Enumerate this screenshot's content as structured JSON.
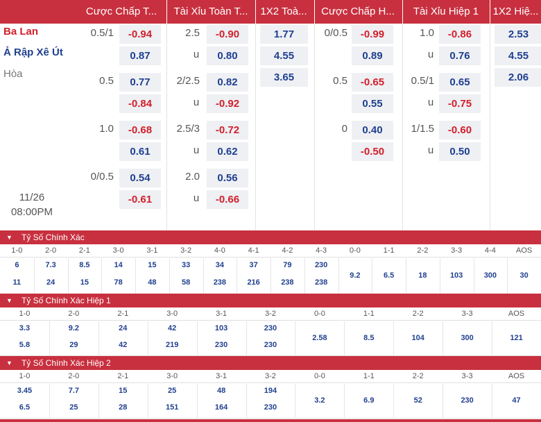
{
  "header": {
    "cols": [
      "Cược Chấp T...",
      "Tài Xỉu Toàn T...",
      "1X2 Toà...",
      "Cược Chấp H...",
      "Tài Xỉu Hiệp 1",
      "1X2 Hiệ..."
    ]
  },
  "teams": {
    "home": "Ba Lan",
    "away": "Ả Rập Xê Út",
    "draw": "Hòa"
  },
  "match_time": {
    "date": "11/26",
    "time": "08:00PM"
  },
  "full_rows": [
    {
      "hcap": "0.5/1",
      "h1": "-0.94",
      "h2": "0.87",
      "ou": "2.5",
      "u": "u",
      "o1": "-0.90",
      "o2": "0.80"
    },
    {
      "hcap": "0.5",
      "h1": "0.77",
      "h2": "-0.84",
      "ou": "2/2.5",
      "u": "u",
      "o1": "0.82",
      "o2": "-0.92"
    },
    {
      "hcap": "1.0",
      "h1": "-0.68",
      "h2": "0.61",
      "ou": "2.5/3",
      "u": "u",
      "o1": "-0.72",
      "o2": "0.62"
    },
    {
      "hcap": "0/0.5",
      "h1": "0.54",
      "h2": "-0.61",
      "ou": "2.0",
      "u": "u",
      "o1": "0.56",
      "o2": "-0.66"
    }
  ],
  "full_1x2": [
    "1.77",
    "4.55",
    "3.65"
  ],
  "half_rows": [
    {
      "hcap": "0/0.5",
      "h1": "-0.99",
      "h2": "0.89",
      "ou": "1.0",
      "u": "u",
      "o1": "-0.86",
      "o2": "0.76"
    },
    {
      "hcap": "0.5",
      "h1": "-0.65",
      "h2": "0.55",
      "ou": "0.5/1",
      "u": "u",
      "o1": "0.65",
      "o2": "-0.75"
    },
    {
      "hcap": "0",
      "h1": "0.40",
      "h2": "-0.50",
      "ou": "1/1.5",
      "u": "u",
      "o1": "-0.60",
      "o2": "0.50"
    }
  ],
  "half_1x2": [
    "2.53",
    "4.55",
    "2.06"
  ],
  "correct_score": {
    "title": "Tỷ Số Chính Xác",
    "headers": [
      "1-0",
      "2-0",
      "2-1",
      "3-0",
      "3-1",
      "3-2",
      "4-0",
      "4-1",
      "4-2",
      "4-3",
      "0-0",
      "1-1",
      "2-2",
      "3-3",
      "4-4",
      "AOS"
    ],
    "top": [
      "6",
      "7.3",
      "8.5",
      "14",
      "15",
      "33",
      "34",
      "37",
      "79",
      "230",
      "9.2",
      "6.5",
      "18",
      "103",
      "300",
      "30"
    ],
    "bottom": [
      "11",
      "24",
      "15",
      "78",
      "48",
      "58",
      "238",
      "216",
      "238",
      "238",
      "",
      "",
      "",
      "",
      "",
      ""
    ]
  },
  "correct_score_h1": {
    "title": "Tỷ Số Chính Xác Hiệp 1",
    "headers": [
      "1-0",
      "2-0",
      "2-1",
      "3-0",
      "3-1",
      "3-2",
      "0-0",
      "1-1",
      "2-2",
      "3-3",
      "AOS"
    ],
    "top": [
      "3.3",
      "9.2",
      "24",
      "42",
      "103",
      "230",
      "2.58",
      "8.5",
      "104",
      "300",
      "121"
    ],
    "bottom": [
      "5.8",
      "29",
      "42",
      "219",
      "230",
      "230",
      "",
      "",
      "",
      "",
      ""
    ]
  },
  "correct_score_h2": {
    "title": "Tỷ Số Chính Xác Hiệp 2",
    "headers": [
      "1-0",
      "2-0",
      "2-1",
      "3-0",
      "3-1",
      "3-2",
      "0-0",
      "1-1",
      "2-2",
      "3-3",
      "AOS"
    ],
    "top": [
      "3.45",
      "7.7",
      "15",
      "25",
      "48",
      "194",
      "3.2",
      "6.9",
      "52",
      "230",
      "47"
    ],
    "bottom": [
      "6.5",
      "25",
      "28",
      "151",
      "164",
      "230",
      "",
      "",
      "",
      "",
      ""
    ]
  },
  "colors": {
    "accent": "#c8303f",
    "negative": "#d21f2b",
    "positive": "#1f3f8f",
    "cell_bg": "#eef0f3"
  },
  "icons": {
    "section_toggle": "triangle-down-icon"
  }
}
